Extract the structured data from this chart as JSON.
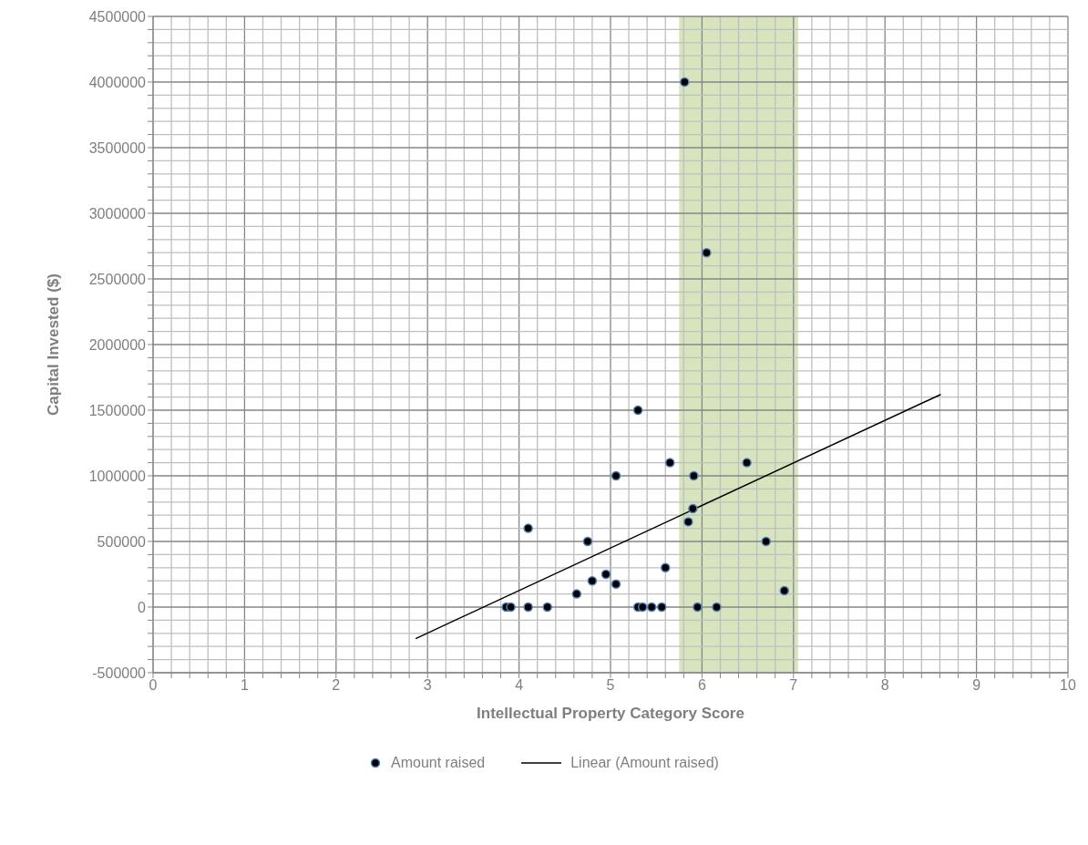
{
  "chart_data": {
    "type": "scatter",
    "xlabel": "Intellectual Property Category Score",
    "ylabel": "Capital Invested ($)",
    "xlim": [
      0,
      10
    ],
    "ylim": [
      -500000,
      4500000
    ],
    "xticks": [
      0,
      {
        "value": 0.2,
        "label": null
      },
      {
        "value": 0.4,
        "label": null
      },
      {
        "value": 0.6,
        "label": null
      },
      {
        "value": 0.8,
        "label": null
      },
      1,
      {
        "value": 1.2,
        "label": null
      },
      {
        "value": 1.4,
        "label": null
      },
      {
        "value": 1.6,
        "label": null
      },
      {
        "value": 1.8,
        "label": null
      },
      2,
      {
        "value": 2.2,
        "label": null
      },
      {
        "value": 2.4,
        "label": null
      },
      {
        "value": 2.6,
        "label": null
      },
      {
        "value": 2.8,
        "label": null
      },
      3,
      {
        "value": 3.2,
        "label": null
      },
      {
        "value": 3.4,
        "label": null
      },
      {
        "value": 3.6,
        "label": null
      },
      {
        "value": 3.8,
        "label": null
      },
      4,
      {
        "value": 4.2,
        "label": null
      },
      {
        "value": 4.4,
        "label": null
      },
      {
        "value": 4.6,
        "label": null
      },
      {
        "value": 4.8,
        "label": null
      },
      5,
      {
        "value": 5.2,
        "label": null
      },
      {
        "value": 5.4,
        "label": null
      },
      {
        "value": 5.6,
        "label": null
      },
      {
        "value": 5.8,
        "label": null
      },
      6,
      {
        "value": 6.2,
        "label": null
      },
      {
        "value": 6.4,
        "label": null
      },
      {
        "value": 6.6,
        "label": null
      },
      {
        "value": 6.8,
        "label": null
      },
      7,
      {
        "value": 7.2,
        "label": null
      },
      {
        "value": 7.4,
        "label": null
      },
      {
        "value": 7.6,
        "label": null
      },
      {
        "value": 7.8,
        "label": null
      },
      8,
      {
        "value": 8.2,
        "label": null
      },
      {
        "value": 8.4,
        "label": null
      },
      {
        "value": 8.6,
        "label": null
      },
      {
        "value": 8.8,
        "label": null
      },
      9,
      {
        "value": 9.2,
        "label": null
      },
      {
        "value": 9.4,
        "label": null
      },
      {
        "value": 9.6,
        "label": null
      },
      {
        "value": 9.8,
        "label": null
      },
      10
    ],
    "yticks": [
      -500000,
      {
        "value": -400000,
        "label": null
      },
      {
        "value": -300000,
        "label": null
      },
      {
        "value": -200000,
        "label": null
      },
      {
        "value": -100000,
        "label": null
      },
      0,
      {
        "value": 100000,
        "label": null
      },
      {
        "value": 200000,
        "label": null
      },
      {
        "value": 300000,
        "label": null
      },
      {
        "value": 400000,
        "label": null
      },
      500000,
      {
        "value": 600000,
        "label": null
      },
      {
        "value": 700000,
        "label": null
      },
      {
        "value": 800000,
        "label": null
      },
      {
        "value": 900000,
        "label": null
      },
      1000000,
      {
        "value": 1100000,
        "label": null
      },
      {
        "value": 1200000,
        "label": null
      },
      {
        "value": 1300000,
        "label": null
      },
      {
        "value": 1400000,
        "label": null
      },
      1500000,
      {
        "value": 1600000,
        "label": null
      },
      {
        "value": 1700000,
        "label": null
      },
      {
        "value": 1800000,
        "label": null
      },
      {
        "value": 1900000,
        "label": null
      },
      2000000,
      {
        "value": 2100000,
        "label": null
      },
      {
        "value": 2200000,
        "label": null
      },
      {
        "value": 2300000,
        "label": null
      },
      {
        "value": 2400000,
        "label": null
      },
      2500000,
      {
        "value": 2600000,
        "label": null
      },
      {
        "value": 2700000,
        "label": null
      },
      {
        "value": 2800000,
        "label": null
      },
      {
        "value": 2900000,
        "label": null
      },
      3000000,
      {
        "value": 3100000,
        "label": null
      },
      {
        "value": 3200000,
        "label": null
      },
      {
        "value": 3300000,
        "label": null
      },
      {
        "value": 3400000,
        "label": null
      },
      3500000,
      {
        "value": 3600000,
        "label": null
      },
      {
        "value": 3700000,
        "label": null
      },
      {
        "value": 3800000,
        "label": null
      },
      {
        "value": 3900000,
        "label": null
      },
      4000000,
      {
        "value": 4100000,
        "label": null
      },
      {
        "value": 4200000,
        "label": null
      },
      {
        "value": 4300000,
        "label": null
      },
      {
        "value": 4400000,
        "label": null
      },
      4500000
    ],
    "grid": true,
    "legend": "bottom",
    "marker": "circle",
    "bands": [
      {
        "axis": "x",
        "from": 5.75,
        "to": 7.05,
        "color": "#d7e4bd"
      }
    ],
    "series": [
      {
        "name": "Amount raised",
        "color": "#000000",
        "x": [
          3.86,
          3.91,
          4.1,
          4.31,
          4.1,
          4.63,
          4.8,
          4.75,
          4.95,
          5.06,
          5.06,
          5.3,
          5.3,
          5.35,
          5.45,
          5.56,
          5.6,
          5.65,
          5.81,
          5.85,
          5.9,
          5.91,
          5.95,
          6.05,
          6.16,
          6.49,
          6.7,
          6.9
        ],
        "values": [
          0,
          0,
          0,
          0,
          600000,
          100000,
          200000,
          500000,
          250000,
          175000,
          1000000,
          1500000,
          0,
          0,
          0,
          0,
          300000,
          1100000,
          4000000,
          650000,
          750000,
          1000000,
          0,
          2700000,
          0,
          1100000,
          500000,
          125000
        ]
      },
      {
        "name": "Linear (Amount raised)",
        "type": "line",
        "color": "#000000",
        "x": [
          2.87,
          8.61
        ],
        "values": [
          -240000,
          1620000
        ],
        "marker": "none",
        "line_style": "solid"
      }
    ]
  }
}
